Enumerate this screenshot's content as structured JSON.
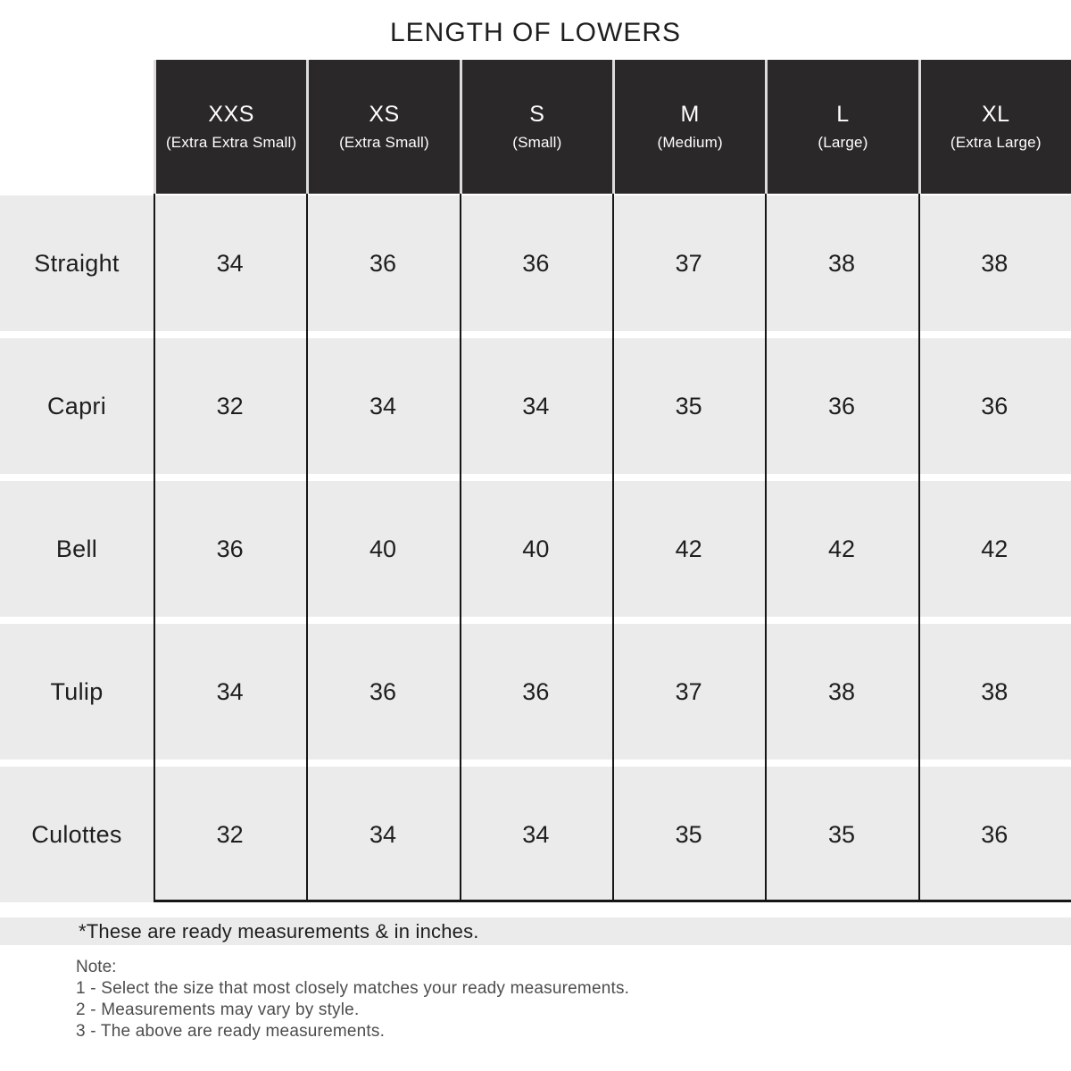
{
  "title": "LENGTH OF LOWERS",
  "colors": {
    "header_bg": "#2b2829",
    "header_text": "#ffffff",
    "cell_bg": "#ebebeb",
    "grid_line": "#161616",
    "text_dark": "#1e1e1e",
    "note_text": "#4d4d4d",
    "page_bg": "#ffffff",
    "header_gap": "#dcdcdc"
  },
  "table": {
    "unit": "inches",
    "columns": [
      {
        "size": "XXS",
        "full": "(Extra Extra Small)"
      },
      {
        "size": "XS",
        "full": "(Extra Small)"
      },
      {
        "size": "S",
        "full": "(Small)"
      },
      {
        "size": "M",
        "full": "(Medium)"
      },
      {
        "size": "L",
        "full": "(Large)"
      },
      {
        "size": "XL",
        "full": "(Extra Large)"
      }
    ],
    "rows": [
      {
        "label": "Straight",
        "values": [
          "34",
          "36",
          "36",
          "37",
          "38",
          "38"
        ]
      },
      {
        "label": "Capri",
        "values": [
          "32",
          "34",
          "34",
          "35",
          "36",
          "36"
        ]
      },
      {
        "label": "Bell",
        "values": [
          "36",
          "40",
          "40",
          "42",
          "42",
          "42"
        ]
      },
      {
        "label": "Tulip",
        "values": [
          "34",
          "36",
          "36",
          "37",
          "38",
          "38"
        ]
      },
      {
        "label": "Culottes",
        "values": [
          "32",
          "34",
          "34",
          "35",
          "35",
          "36"
        ]
      }
    ]
  },
  "footnote": "*These are ready measurements & in inches.",
  "note": {
    "heading": "Note:",
    "items": [
      "1 - Select the size that most closely matches your ready measurements.",
      "2 - Measurements may vary by style.",
      "3 - The above are ready measurements."
    ]
  }
}
